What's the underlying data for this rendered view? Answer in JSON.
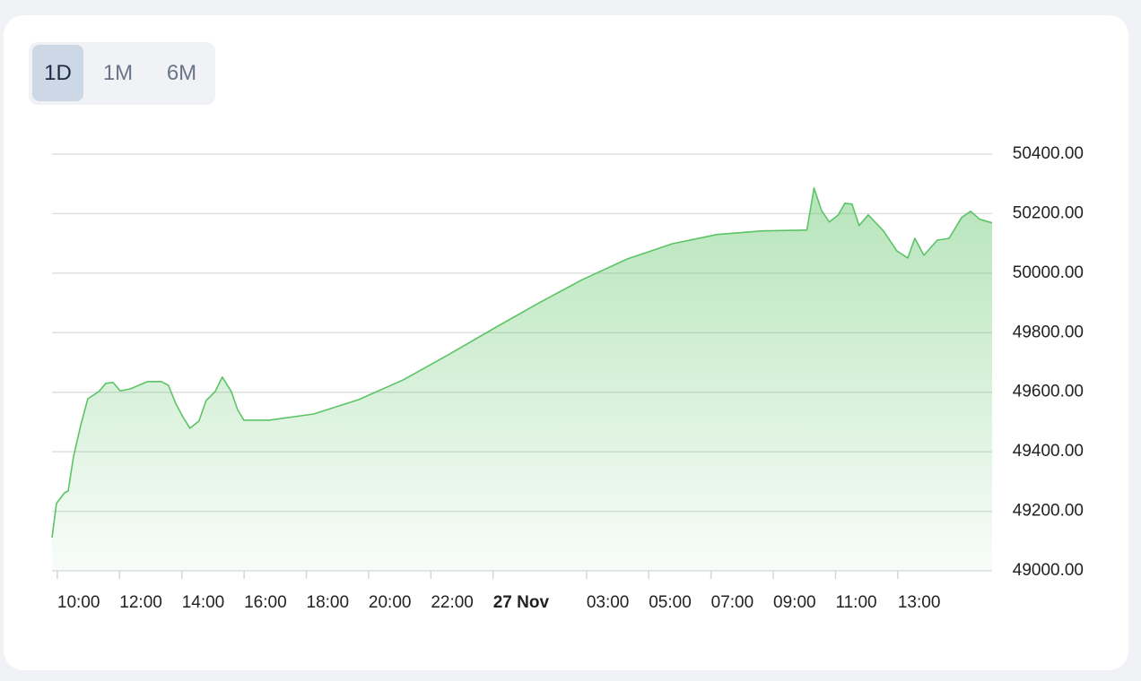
{
  "range_buttons": [
    "1D",
    "1M",
    "6M"
  ],
  "chart_data": {
    "type": "area",
    "x": [
      9.83,
      9.97,
      10.23,
      10.35,
      10.52,
      10.75,
      10.98,
      11.33,
      11.56,
      11.79,
      12.02,
      12.33,
      12.91,
      13.34,
      13.57,
      13.8,
      14.03,
      14.26,
      14.55,
      14.78,
      15.07,
      15.3,
      15.59,
      15.79,
      15.99,
      16.8,
      18.24,
      19.68,
      21.12,
      22.56,
      24.0,
      25.44,
      26.88,
      28.32,
      29.76,
      31.2,
      32.64,
      34.08,
      34.31,
      34.55,
      34.8,
      35.09,
      35.3,
      35.53,
      35.76,
      36.05,
      36.54,
      36.97,
      37.32,
      37.55,
      37.84,
      38.27,
      38.65,
      39.05,
      39.34,
      39.63,
      40.03
    ],
    "values": [
      49111,
      49226,
      49262,
      49268,
      49383,
      49488,
      49578,
      49602,
      49630,
      49633,
      49605,
      49611,
      49636,
      49636,
      49623,
      49563,
      49518,
      49479,
      49503,
      49572,
      49602,
      49651,
      49602,
      49542,
      49506,
      49506,
      49527,
      49575,
      49642,
      49726,
      49813,
      49898,
      49979,
      50048,
      50099,
      50130,
      50142,
      50145,
      50286,
      50211,
      50172,
      50196,
      50235,
      50232,
      50160,
      50196,
      50142,
      50075,
      50051,
      50117,
      50060,
      50111,
      50117,
      50187,
      50208,
      50181,
      50169
    ],
    "color": "#5cc466",
    "xlim": [
      9.83,
      40.03
    ],
    "xticks": [
      {
        "value": 10,
        "label": "10:00"
      },
      {
        "value": 12,
        "label": "12:00"
      },
      {
        "value": 14,
        "label": "14:00"
      },
      {
        "value": 16,
        "label": "16:00"
      },
      {
        "value": 18,
        "label": "18:00"
      },
      {
        "value": 20,
        "label": "20:00"
      },
      {
        "value": 22,
        "label": "22:00"
      },
      {
        "value": 24,
        "label": "27 Nov"
      },
      {
        "value": 27,
        "label": "03:00"
      },
      {
        "value": 29,
        "label": "05:00"
      },
      {
        "value": 31,
        "label": "07:00"
      },
      {
        "value": 33,
        "label": "09:00"
      },
      {
        "value": 35,
        "label": "11:00"
      },
      {
        "value": 37,
        "label": "13:00"
      }
    ],
    "ylim": [
      49000,
      50400
    ],
    "yticks": [
      {
        "value": 49000,
        "label": "49000.00"
      },
      {
        "value": 49200,
        "label": "49200.00"
      },
      {
        "value": 49400,
        "label": "49400.00"
      },
      {
        "value": 49600,
        "label": "49600.00"
      },
      {
        "value": 49800,
        "label": "49800.00"
      },
      {
        "value": 50000,
        "label": "50000.00"
      },
      {
        "value": 50200,
        "label": "50200.00"
      },
      {
        "value": 50400,
        "label": "50400.00"
      }
    ],
    "grid": true
  }
}
